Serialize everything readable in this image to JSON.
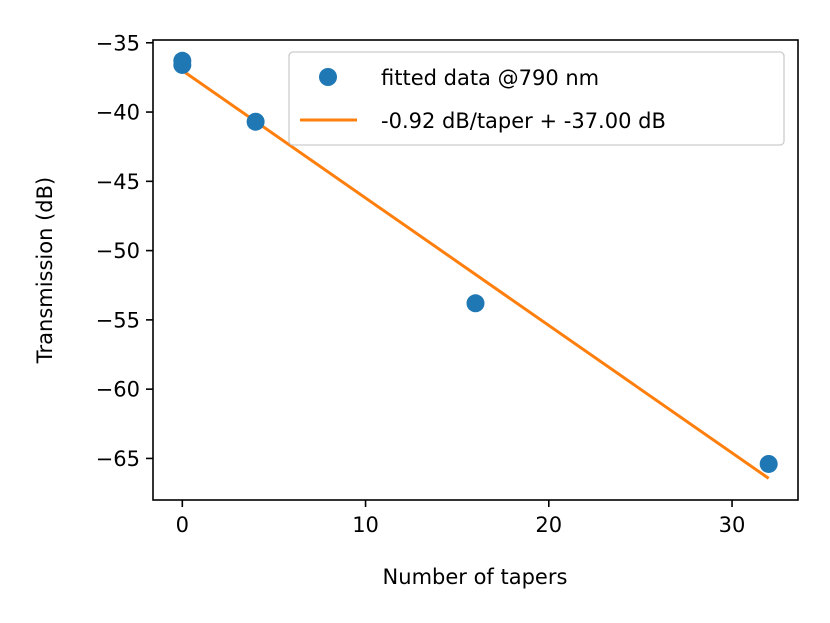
{
  "chart_data": {
    "type": "scatter",
    "title": "",
    "xlabel": "Number of tapers",
    "ylabel": "Transmission (dB)",
    "xlim": [
      -1.6,
      33.6
    ],
    "ylim": [
      -68.0,
      -34.8
    ],
    "xticks": [
      0,
      10,
      20,
      30
    ],
    "xtick_labels": [
      "0",
      "10",
      "20",
      "30"
    ],
    "yticks": [
      -35,
      -40,
      -45,
      -50,
      -55,
      -60,
      -65
    ],
    "ytick_labels": [
      "−35",
      "−40",
      "−45",
      "−50",
      "−55",
      "−60",
      "−65"
    ],
    "grid": false,
    "legend_position": "top-right",
    "series": [
      {
        "name": "fitted data @790 nm",
        "kind": "scatter",
        "color": "#1f77b4",
        "x": [
          0,
          0,
          4,
          16,
          32
        ],
        "y": [
          -36.3,
          -36.6,
          -40.7,
          -53.8,
          -65.4
        ]
      },
      {
        "name": "-0.92 dB/taper + -37.00 dB",
        "kind": "line",
        "color": "#ff7f0e",
        "slope": -0.92,
        "intercept": -37.0,
        "x": [
          0,
          32
        ],
        "y": [
          -37.0,
          -66.44
        ]
      }
    ]
  }
}
